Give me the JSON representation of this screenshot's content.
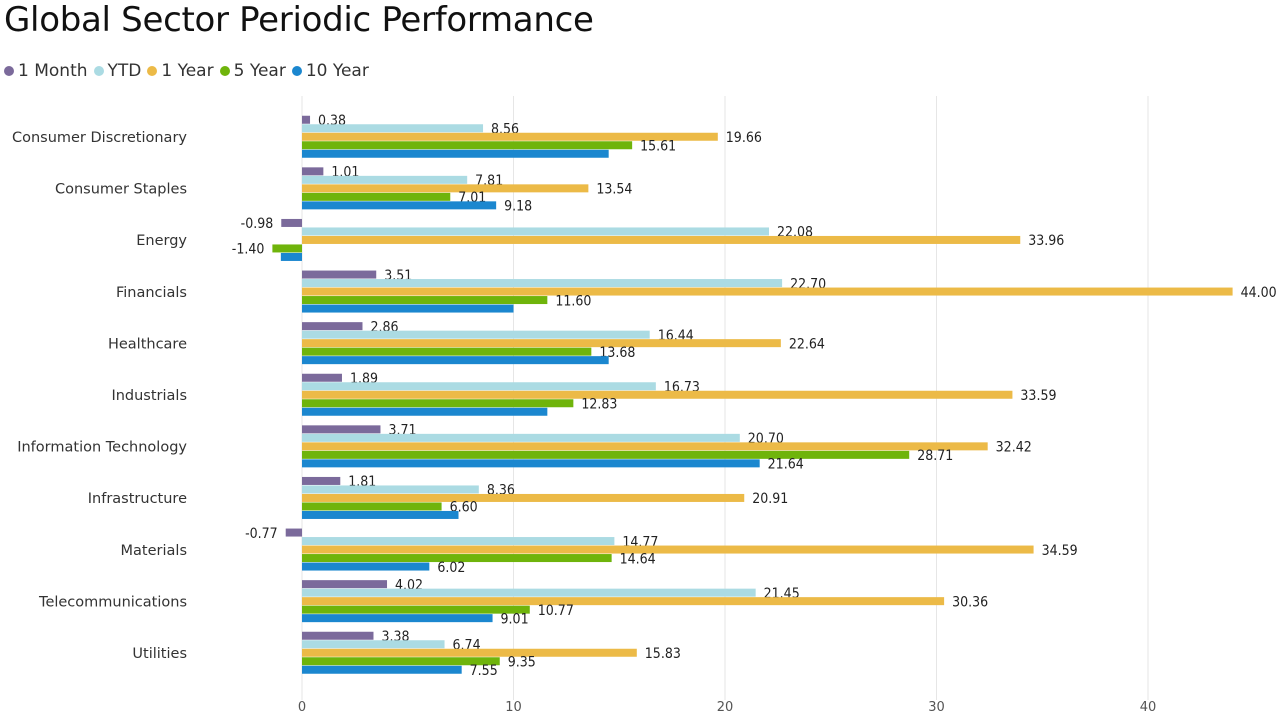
{
  "title": "Global Sector Periodic Performance",
  "chart_data": {
    "type": "bar",
    "orientation": "horizontal",
    "title": "Global Sector Periodic Performance",
    "xlabel": "",
    "ylabel": "",
    "xlim": [
      -1.4,
      46
    ],
    "xticks": [
      0,
      10,
      20,
      30,
      40
    ],
    "grid": true,
    "legend_position": "top-left",
    "categories": [
      "Consumer Discretionary",
      "Consumer Staples",
      "Energy",
      "Financials",
      "Healthcare",
      "Industrials",
      "Information Technology",
      "Infrastructure",
      "Materials",
      "Telecommunications",
      "Utilities"
    ],
    "series": [
      {
        "name": "1 Month",
        "color": "#7b6a9b",
        "values": [
          0.38,
          1.01,
          -0.98,
          3.51,
          2.86,
          1.89,
          3.71,
          1.81,
          -0.77,
          4.02,
          3.38
        ],
        "labels": [
          "0.38",
          "1.01",
          "-0.98",
          "3.51",
          "2.86",
          "1.89",
          "3.71",
          "1.81",
          "-0.77",
          "4.02",
          "3.38"
        ]
      },
      {
        "name": "YTD",
        "color": "#abdbe3",
        "values": [
          8.56,
          7.81,
          22.08,
          22.7,
          16.44,
          16.73,
          20.7,
          8.36,
          14.77,
          21.45,
          6.74
        ],
        "labels": [
          "8.56",
          "7.81",
          "22.08",
          "22.70",
          "16.44",
          "16.73",
          "20.70",
          "8.36",
          "14.77",
          "21.45",
          "6.74"
        ]
      },
      {
        "name": "1 Year",
        "color": "#ecba47",
        "values": [
          19.66,
          13.54,
          33.96,
          44.0,
          22.64,
          33.59,
          32.42,
          20.91,
          34.59,
          30.36,
          15.83
        ],
        "labels": [
          "19.66",
          "13.54",
          "33.96",
          "44.00",
          "22.64",
          "33.59",
          "32.42",
          "20.91",
          "34.59",
          "30.36",
          "15.83"
        ]
      },
      {
        "name": "5 Year",
        "color": "#6fb40b",
        "values": [
          15.61,
          7.01,
          -1.4,
          11.6,
          13.68,
          12.83,
          28.71,
          6.6,
          14.64,
          10.77,
          9.35
        ],
        "labels": [
          "15.61",
          "7.01",
          "-1.40",
          "11.60",
          "13.68",
          "12.83",
          "28.71",
          "6.60",
          "14.64",
          "10.77",
          "9.35"
        ]
      },
      {
        "name": "10 Year",
        "color": "#1b87cf",
        "values": [
          14.5,
          9.18,
          -1.0,
          10.0,
          14.5,
          11.6,
          21.64,
          7.4,
          6.02,
          9.01,
          7.55
        ],
        "labels": [
          "",
          "9.18",
          "",
          "",
          "",
          "",
          "21.64",
          "",
          "6.02",
          "9.01",
          "7.55"
        ]
      }
    ]
  }
}
